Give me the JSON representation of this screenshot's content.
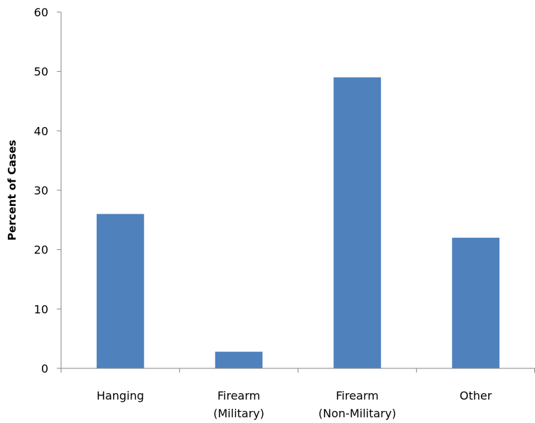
{
  "chart_data": {
    "type": "bar",
    "categories": [
      "Hanging",
      "Firearm (Military)",
      "Firearm (Non-Military)",
      "Other"
    ],
    "category_lines": [
      [
        "Hanging"
      ],
      [
        "Firearm",
        "(Military)"
      ],
      [
        "Firearm",
        "(Non-Military)"
      ],
      [
        "Other"
      ]
    ],
    "values": [
      26,
      2.8,
      49,
      22
    ],
    "title": "",
    "xlabel": "",
    "ylabel": "Percent of Cases",
    "ylim": [
      0,
      60
    ],
    "yticks": [
      0,
      10,
      20,
      30,
      40,
      50,
      60
    ],
    "grid": false,
    "legend": "none",
    "bar_color": "#4f81bd",
    "axis_color": "#868686"
  }
}
